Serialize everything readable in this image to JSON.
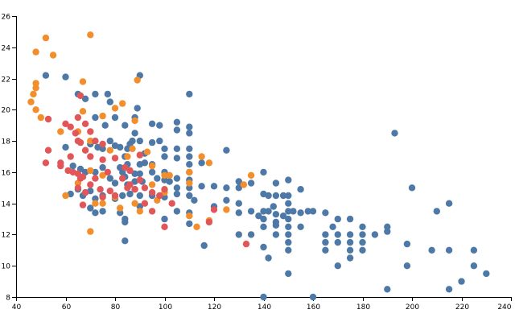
{
  "chart_data": {
    "type": "scatter",
    "title": "",
    "xlabel": "",
    "ylabel": "",
    "xlim": [
      40,
      240
    ],
    "ylim": [
      8,
      26
    ],
    "grid": false,
    "x_ticks": [
      "40",
      "60",
      "80",
      "100",
      "120",
      "140",
      "160",
      "180",
      "200",
      "220",
      "240"
    ],
    "y_ticks": [
      "8",
      "10",
      "12",
      "14",
      "16",
      "18",
      "20",
      "22",
      "24",
      "26"
    ],
    "series": [
      {
        "name": "blue",
        "color": "#4e79a7",
        "points": [
          [
            52,
            22.2
          ],
          [
            60,
            22.1
          ],
          [
            65,
            21.0
          ],
          [
            68,
            20.7
          ],
          [
            72,
            21.0
          ],
          [
            77,
            21.0
          ],
          [
            78,
            20.5
          ],
          [
            90,
            22.2
          ],
          [
            110,
            21.0
          ],
          [
            72,
            19.5
          ],
          [
            76,
            19.0
          ],
          [
            80,
            19.5
          ],
          [
            84,
            19.0
          ],
          [
            88,
            19.5
          ],
          [
            89,
            20.1
          ],
          [
            95,
            19.1
          ],
          [
            98,
            19.0
          ],
          [
            105,
            19.2
          ],
          [
            105,
            18.7
          ],
          [
            110,
            18.9
          ],
          [
            110,
            18.5
          ],
          [
            60,
            17.6
          ],
          [
            70,
            17.8
          ],
          [
            73,
            17.6
          ],
          [
            75,
            17.5
          ],
          [
            78,
            18.0
          ],
          [
            80,
            17.7
          ],
          [
            82,
            17.6
          ],
          [
            84,
            17.0
          ],
          [
            85,
            17.5
          ],
          [
            86,
            17.8
          ],
          [
            87,
            18.0
          ],
          [
            88,
            18.5
          ],
          [
            90,
            18.0
          ],
          [
            92,
            17.2
          ],
          [
            95,
            17.9
          ],
          [
            98,
            18.0
          ],
          [
            100,
            17.5
          ],
          [
            100,
            17.0
          ],
          [
            105,
            17.5
          ],
          [
            105,
            16.9
          ],
          [
            110,
            17.5
          ],
          [
            110,
            17.0
          ],
          [
            115,
            16.6
          ],
          [
            125,
            17.4
          ],
          [
            63,
            16.4
          ],
          [
            66,
            16.2
          ],
          [
            68,
            16.0
          ],
          [
            72,
            16.0
          ],
          [
            75,
            16.3
          ],
          [
            78,
            15.6
          ],
          [
            80,
            15.3
          ],
          [
            82,
            16.3
          ],
          [
            83,
            16.0
          ],
          [
            84,
            15.7
          ],
          [
            85,
            16.5
          ],
          [
            85,
            15.2
          ],
          [
            86,
            16.1
          ],
          [
            88,
            15.9
          ],
          [
            88,
            15.4
          ],
          [
            90,
            16.5
          ],
          [
            90,
            15.9
          ],
          [
            91,
            15.4
          ],
          [
            92,
            16.6
          ],
          [
            95,
            16.5
          ],
          [
            95,
            16.0
          ],
          [
            97,
            15.6
          ],
          [
            100,
            16.0
          ],
          [
            100,
            15.5
          ],
          [
            102,
            15.4
          ],
          [
            105,
            15.6
          ],
          [
            105,
            15.0
          ],
          [
            110,
            16.5
          ],
          [
            110,
            16.0
          ],
          [
            110,
            15.5
          ],
          [
            110,
            15.0
          ],
          [
            115,
            15.1
          ],
          [
            120,
            15.1
          ],
          [
            125,
            15.0
          ],
          [
            130,
            15.4
          ],
          [
            130,
            15.0
          ],
          [
            135,
            15.3
          ],
          [
            140,
            16.0
          ],
          [
            145,
            15.3
          ],
          [
            150,
            15.5
          ],
          [
            155,
            14.9
          ],
          [
            62,
            14.6
          ],
          [
            65,
            14.9
          ],
          [
            67,
            14.5
          ],
          [
            70,
            14.8
          ],
          [
            72,
            14.3
          ],
          [
            75,
            14.5
          ],
          [
            80,
            14.3
          ],
          [
            83,
            14.5
          ],
          [
            86,
            14.6
          ],
          [
            88,
            14.9
          ],
          [
            90,
            14.5
          ],
          [
            95,
            14.5
          ],
          [
            100,
            14.4
          ],
          [
            105,
            14.6
          ],
          [
            110,
            14.5
          ],
          [
            112,
            14.2
          ],
          [
            120,
            13.8
          ],
          [
            125,
            14.2
          ],
          [
            130,
            14.0
          ],
          [
            140,
            14.6
          ],
          [
            142,
            14.5
          ],
          [
            145,
            14.5
          ],
          [
            148,
            14.5
          ],
          [
            150,
            14.5
          ],
          [
            150,
            14.0
          ],
          [
            70,
            13.7
          ],
          [
            72,
            13.4
          ],
          [
            75,
            13.5
          ],
          [
            82,
            13.4
          ],
          [
            84,
            13.0
          ],
          [
            90,
            13.8
          ],
          [
            100,
            13.0
          ],
          [
            105,
            13.5
          ],
          [
            110,
            13.4
          ],
          [
            130,
            13.4
          ],
          [
            135,
            13.5
          ],
          [
            138,
            13.2
          ],
          [
            140,
            13.0
          ],
          [
            140,
            13.5
          ],
          [
            142,
            13.5
          ],
          [
            144,
            13.8
          ],
          [
            145,
            13.3
          ],
          [
            145,
            12.8
          ],
          [
            148,
            13.2
          ],
          [
            150,
            13.0
          ],
          [
            150,
            13.5
          ],
          [
            152,
            13.5
          ],
          [
            155,
            13.4
          ],
          [
            158,
            13.5
          ],
          [
            160,
            13.5
          ],
          [
            165,
            13.4
          ],
          [
            170,
            13.0
          ],
          [
            175,
            13.0
          ],
          [
            84,
            12.8
          ],
          [
            110,
            12.7
          ],
          [
            140,
            12.5
          ],
          [
            145,
            12.6
          ],
          [
            145,
            12.0
          ],
          [
            150,
            12.5
          ],
          [
            150,
            12.0
          ],
          [
            155,
            12.5
          ],
          [
            165,
            12.0
          ],
          [
            168,
            12.5
          ],
          [
            170,
            12.0
          ],
          [
            175,
            12.0
          ],
          [
            180,
            12.5
          ],
          [
            190,
            12.5
          ],
          [
            130,
            12.0
          ],
          [
            135,
            12.0
          ],
          [
            165,
            11.5
          ],
          [
            170,
            11.5
          ],
          [
            175,
            11.5
          ],
          [
            180,
            12.0
          ],
          [
            180,
            11.5
          ],
          [
            190,
            12.2
          ],
          [
            150,
            11.5
          ],
          [
            84,
            11.6
          ],
          [
            116,
            11.3
          ],
          [
            140,
            11.2
          ],
          [
            150,
            11.0
          ],
          [
            165,
            11.0
          ],
          [
            175,
            11.0
          ],
          [
            180,
            11.0
          ],
          [
            198,
            11.4
          ],
          [
            208,
            11.0
          ],
          [
            215,
            11.0
          ],
          [
            225,
            11.0
          ],
          [
            142,
            10.5
          ],
          [
            175,
            10.5
          ],
          [
            170,
            10.0
          ],
          [
            198,
            10.0
          ],
          [
            225,
            10.0
          ],
          [
            150,
            9.5
          ],
          [
            230,
            9.5
          ],
          [
            220,
            9.0
          ],
          [
            190,
            8.5
          ],
          [
            215,
            8.5
          ],
          [
            140,
            8.0
          ],
          [
            160,
            8.0
          ],
          [
            193,
            18.5
          ],
          [
            200,
            15.0
          ],
          [
            215,
            14.0
          ],
          [
            210,
            13.5
          ],
          [
            185,
            12.0
          ]
        ]
      },
      {
        "name": "orange",
        "color": "#f28e2b",
        "points": [
          [
            52,
            24.6
          ],
          [
            70,
            24.8
          ],
          [
            48,
            23.7
          ],
          [
            55,
            23.5
          ],
          [
            48,
            21.7
          ],
          [
            48,
            21.4
          ],
          [
            67,
            21.8
          ],
          [
            89,
            21.9
          ],
          [
            47,
            21.0
          ],
          [
            46,
            20.5
          ],
          [
            48,
            20.0
          ],
          [
            50,
            19.5
          ],
          [
            67,
            19.9
          ],
          [
            80,
            20.1
          ],
          [
            83,
            20.4
          ],
          [
            75,
            19.6
          ],
          [
            88,
            19.3
          ],
          [
            65,
            18.6
          ],
          [
            58,
            18.6
          ],
          [
            70,
            18.0
          ],
          [
            78,
            17.4
          ],
          [
            87,
            17.5
          ],
          [
            85,
            17.0
          ],
          [
            93,
            17.3
          ],
          [
            115,
            17.0
          ],
          [
            118,
            16.6
          ],
          [
            110,
            16.0
          ],
          [
            100,
            15.8
          ],
          [
            95,
            15.2
          ],
          [
            75,
            15.8
          ],
          [
            70,
            16.1
          ],
          [
            65,
            15.3
          ],
          [
            60,
            14.5
          ],
          [
            72,
            14.0
          ],
          [
            80,
            14.4
          ],
          [
            88,
            14.0
          ],
          [
            97,
            14.2
          ],
          [
            100,
            14.7
          ],
          [
            75,
            14.0
          ],
          [
            82,
            13.7
          ],
          [
            90,
            13.5
          ],
          [
            110,
            13.2
          ],
          [
            113,
            12.5
          ],
          [
            118,
            12.9
          ],
          [
            125,
            13.6
          ],
          [
            110,
            15.3
          ],
          [
            102,
            15.8
          ],
          [
            95,
            16.4
          ],
          [
            132,
            15.2
          ],
          [
            135,
            15.8
          ],
          [
            70,
            12.2
          ]
        ]
      },
      {
        "name": "red",
        "color": "#e15759",
        "points": [
          [
            66,
            20.9
          ],
          [
            68,
            19.1
          ],
          [
            65,
            19.5
          ],
          [
            60,
            19.1
          ],
          [
            62,
            18.9
          ],
          [
            64,
            18.5
          ],
          [
            65,
            18.0
          ],
          [
            66,
            17.9
          ],
          [
            68,
            17.4
          ],
          [
            70,
            18.6
          ],
          [
            72,
            18.0
          ],
          [
            62,
            17.0
          ],
          [
            58,
            16.6
          ],
          [
            53,
            17.4
          ],
          [
            52,
            16.6
          ],
          [
            58,
            16.4
          ],
          [
            61,
            16.1
          ],
          [
            63,
            16.0
          ],
          [
            65,
            15.9
          ],
          [
            67,
            15.7
          ],
          [
            65,
            15.0
          ],
          [
            66,
            15.6
          ],
          [
            68,
            14.7
          ],
          [
            70,
            15.2
          ],
          [
            72,
            15.6
          ],
          [
            74,
            14.9
          ],
          [
            75,
            14.4
          ],
          [
            78,
            14.8
          ],
          [
            80,
            14.5
          ],
          [
            85,
            15.0
          ],
          [
            90,
            15.5
          ],
          [
            92,
            15.0
          ],
          [
            95,
            14.7
          ],
          [
            98,
            14.5
          ],
          [
            100,
            14.9
          ],
          [
            103,
            14.0
          ],
          [
            70,
            17.0
          ],
          [
            75,
            17.8
          ],
          [
            75,
            16.8
          ],
          [
            77,
            16.0
          ],
          [
            80,
            16.9
          ],
          [
            83,
            15.6
          ],
          [
            86,
            15.2
          ],
          [
            88,
            14.9
          ],
          [
            92,
            14.0
          ],
          [
            95,
            13.5
          ],
          [
            120,
            13.6
          ],
          [
            118,
            12.8
          ],
          [
            100,
            12.5
          ],
          [
            133,
            11.4
          ],
          [
            67,
            13.9
          ],
          [
            53,
            19.4
          ],
          [
            90,
            17.1
          ],
          [
            86,
            16.1
          ],
          [
            84,
            16.3
          ]
        ]
      }
    ]
  }
}
